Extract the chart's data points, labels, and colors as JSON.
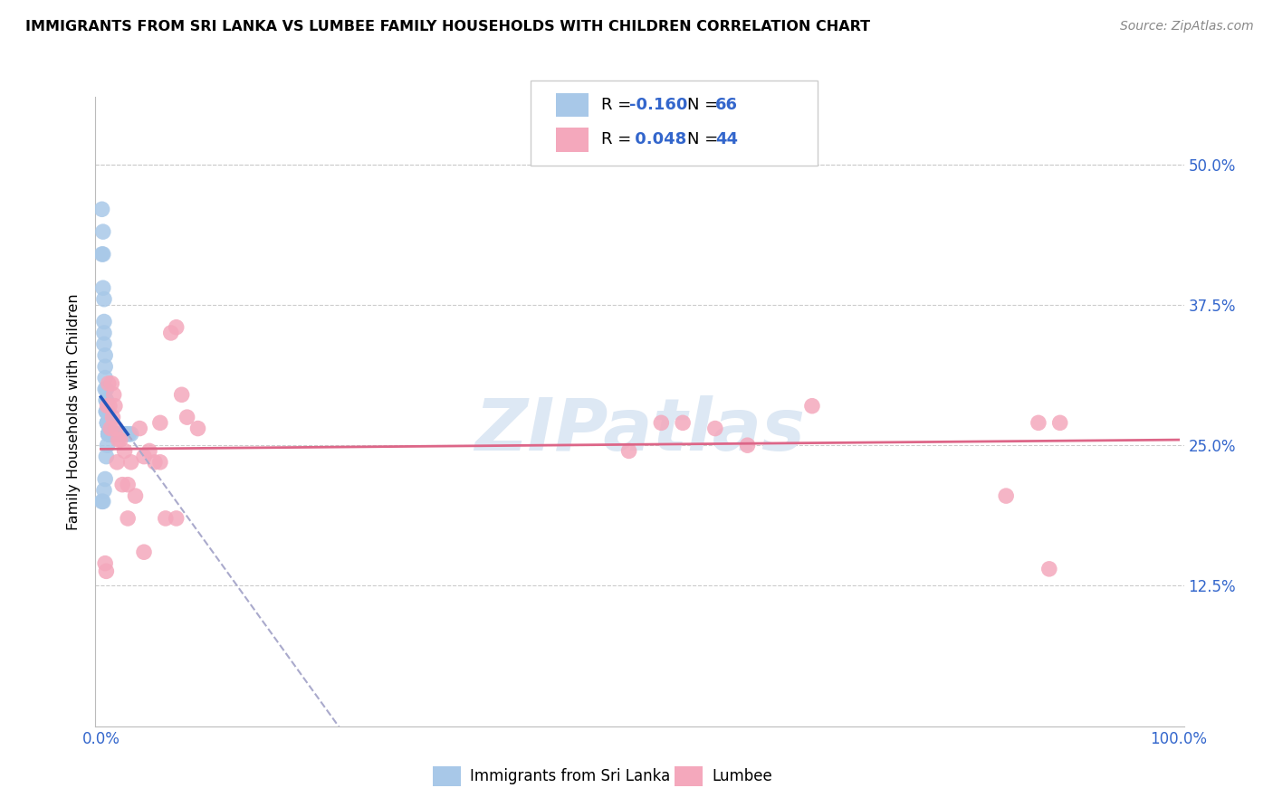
{
  "title": "IMMIGRANTS FROM SRI LANKA VS LUMBEE FAMILY HOUSEHOLDS WITH CHILDREN CORRELATION CHART",
  "source": "Source: ZipAtlas.com",
  "ylabel": "Family Households with Children",
  "ytick_vals": [
    0.125,
    0.25,
    0.375,
    0.5
  ],
  "ytick_labels": [
    "12.5%",
    "25.0%",
    "37.5%",
    "50.0%"
  ],
  "color_blue": "#a8c8e8",
  "color_pink": "#f4a8bc",
  "color_blue_line": "#2255bb",
  "color_pink_line": "#dd6688",
  "color_dashed": "#aaaacc",
  "watermark": "ZIPatlas",
  "watermark_color": "#dde8f4",
  "legend_label1": "Immigrants from Sri Lanka",
  "legend_label2": "Lumbee",
  "R_blue": -0.16,
  "R_pink": 0.048,
  "N_blue": 66,
  "N_pink": 44,
  "blue_x": [
    0.001,
    0.001,
    0.002,
    0.002,
    0.002,
    0.003,
    0.003,
    0.003,
    0.003,
    0.004,
    0.004,
    0.004,
    0.004,
    0.005,
    0.005,
    0.005,
    0.005,
    0.005,
    0.006,
    0.006,
    0.006,
    0.006,
    0.006,
    0.006,
    0.007,
    0.007,
    0.007,
    0.007,
    0.007,
    0.007,
    0.007,
    0.008,
    0.008,
    0.008,
    0.008,
    0.009,
    0.009,
    0.009,
    0.009,
    0.01,
    0.01,
    0.01,
    0.011,
    0.011,
    0.012,
    0.012,
    0.013,
    0.014,
    0.015,
    0.016,
    0.017,
    0.018,
    0.019,
    0.02,
    0.021,
    0.022,
    0.024,
    0.026,
    0.028,
    0.001,
    0.002,
    0.003,
    0.004,
    0.005,
    0.006,
    0.007
  ],
  "blue_y": [
    0.46,
    0.42,
    0.44,
    0.42,
    0.39,
    0.38,
    0.36,
    0.35,
    0.34,
    0.33,
    0.32,
    0.31,
    0.3,
    0.3,
    0.29,
    0.29,
    0.28,
    0.28,
    0.28,
    0.27,
    0.27,
    0.27,
    0.27,
    0.27,
    0.26,
    0.26,
    0.26,
    0.26,
    0.26,
    0.26,
    0.26,
    0.26,
    0.26,
    0.26,
    0.26,
    0.26,
    0.26,
    0.26,
    0.26,
    0.26,
    0.26,
    0.26,
    0.26,
    0.26,
    0.26,
    0.26,
    0.26,
    0.26,
    0.26,
    0.26,
    0.26,
    0.26,
    0.26,
    0.26,
    0.26,
    0.26,
    0.26,
    0.26,
    0.26,
    0.2,
    0.2,
    0.21,
    0.22,
    0.24,
    0.25,
    0.27
  ],
  "pink_x": [
    0.004,
    0.005,
    0.006,
    0.007,
    0.008,
    0.009,
    0.01,
    0.011,
    0.012,
    0.013,
    0.014,
    0.015,
    0.016,
    0.018,
    0.02,
    0.022,
    0.025,
    0.028,
    0.032,
    0.036,
    0.04,
    0.045,
    0.05,
    0.055,
    0.06,
    0.065,
    0.07,
    0.075,
    0.08,
    0.055,
    0.04,
    0.025,
    0.07,
    0.09,
    0.49,
    0.52,
    0.54,
    0.57,
    0.6,
    0.66,
    0.84,
    0.87,
    0.88,
    0.89
  ],
  "pink_y": [
    0.145,
    0.138,
    0.285,
    0.305,
    0.285,
    0.265,
    0.305,
    0.275,
    0.295,
    0.285,
    0.265,
    0.235,
    0.255,
    0.255,
    0.215,
    0.245,
    0.215,
    0.235,
    0.205,
    0.265,
    0.155,
    0.245,
    0.235,
    0.235,
    0.185,
    0.35,
    0.355,
    0.295,
    0.275,
    0.27,
    0.24,
    0.185,
    0.185,
    0.265,
    0.245,
    0.27,
    0.27,
    0.265,
    0.25,
    0.285,
    0.205,
    0.27,
    0.14,
    0.27
  ]
}
